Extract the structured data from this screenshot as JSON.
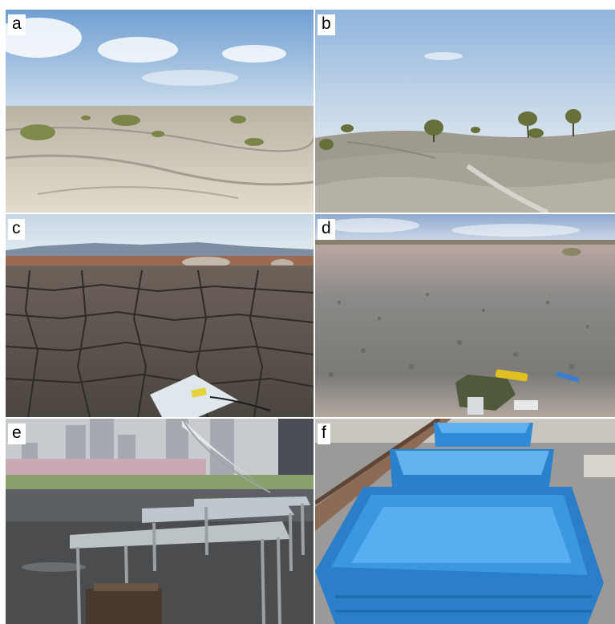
{
  "panels": [
    {
      "label": "a"
    },
    {
      "label": "b"
    },
    {
      "label": "c"
    },
    {
      "label": "d"
    },
    {
      "label": "e"
    },
    {
      "label": "f"
    }
  ],
  "colors": {
    "sky_a": "#8fb6dc",
    "sand": "#d8d1c4",
    "sky_b": "#a9c6e3",
    "cracked_mud": "#5b534d",
    "gravel": "#8d8b87",
    "tank_blue": "#2f8bd6"
  }
}
